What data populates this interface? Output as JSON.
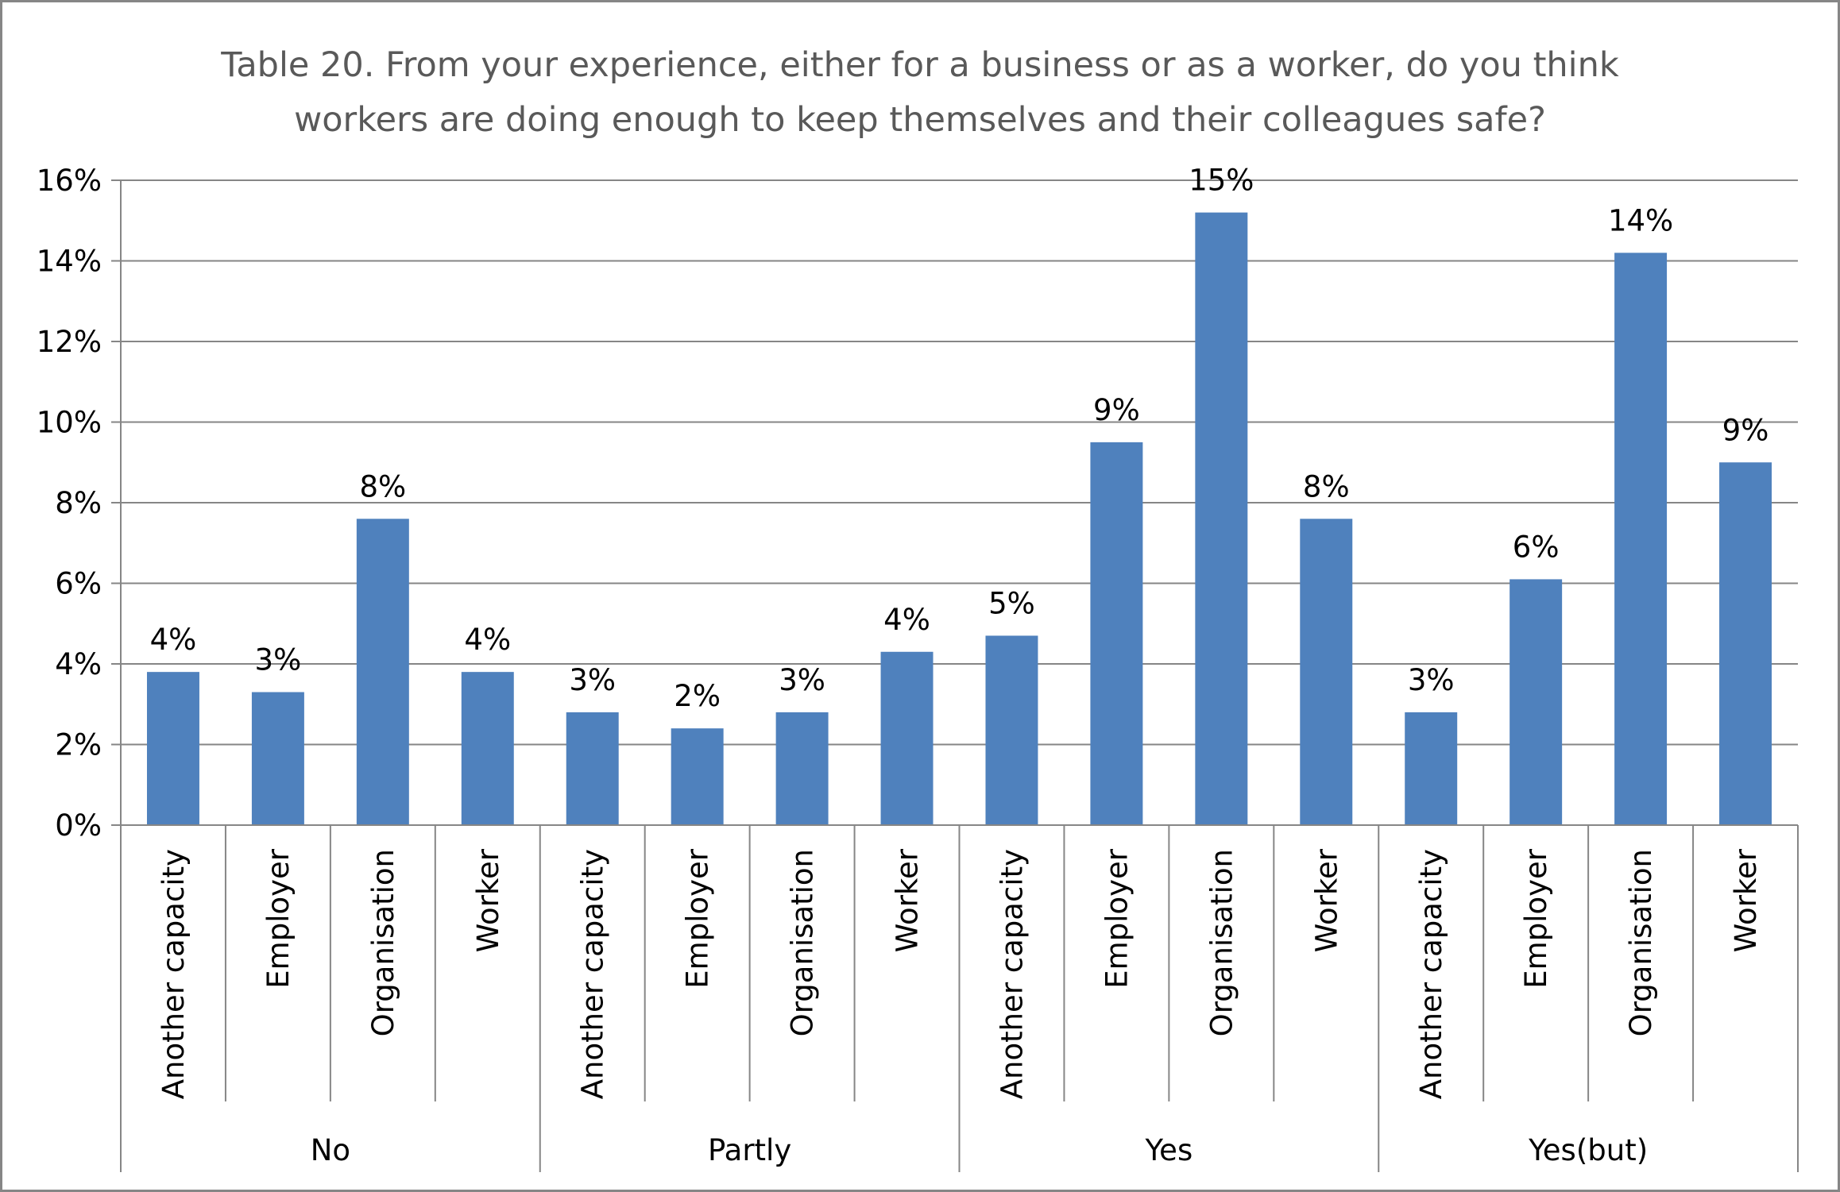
{
  "chart_data": {
    "type": "bar",
    "title": "Table 20. From your experience, either for a business or as a worker, do you think workers are doing enough to keep themselves and their colleagues safe?",
    "title_lines": [
      "Table 20. From your experience, either for a business or as a worker, do you think",
      "workers are doing enough to keep themselves and their colleagues safe?"
    ],
    "xlabel": "",
    "ylabel": "",
    "ylim": [
      0,
      16
    ],
    "y_ticks": [
      "0%",
      "2%",
      "4%",
      "6%",
      "8%",
      "10%",
      "12%",
      "14%",
      "16%"
    ],
    "grid": true,
    "legend": "none",
    "bar_color": "#4f81bd",
    "groups": [
      {
        "name": "No",
        "categories": [
          "Another capacity",
          "Employer",
          "Organisation",
          "Worker"
        ],
        "values": [
          3.8,
          3.3,
          7.6,
          3.8
        ],
        "labels": [
          "4%",
          "3%",
          "8%",
          "4%"
        ]
      },
      {
        "name": "Partly",
        "categories": [
          "Another capacity",
          "Employer",
          "Organisation",
          "Worker"
        ],
        "values": [
          2.8,
          2.4,
          2.8,
          4.3
        ],
        "labels": [
          "3%",
          "2%",
          "3%",
          "4%"
        ]
      },
      {
        "name": "Yes",
        "categories": [
          "Another capacity",
          "Employer",
          "Organisation",
          "Worker"
        ],
        "values": [
          4.7,
          9.5,
          15.2,
          7.6
        ],
        "labels": [
          "5%",
          "9%",
          "15%",
          "8%"
        ]
      },
      {
        "name": "Yes(but)",
        "categories": [
          "Another capacity",
          "Employer",
          "Organisation",
          "Worker"
        ],
        "values": [
          2.8,
          6.1,
          14.2,
          9.0
        ],
        "labels": [
          "3%",
          "6%",
          "14%",
          "9%"
        ]
      }
    ]
  }
}
